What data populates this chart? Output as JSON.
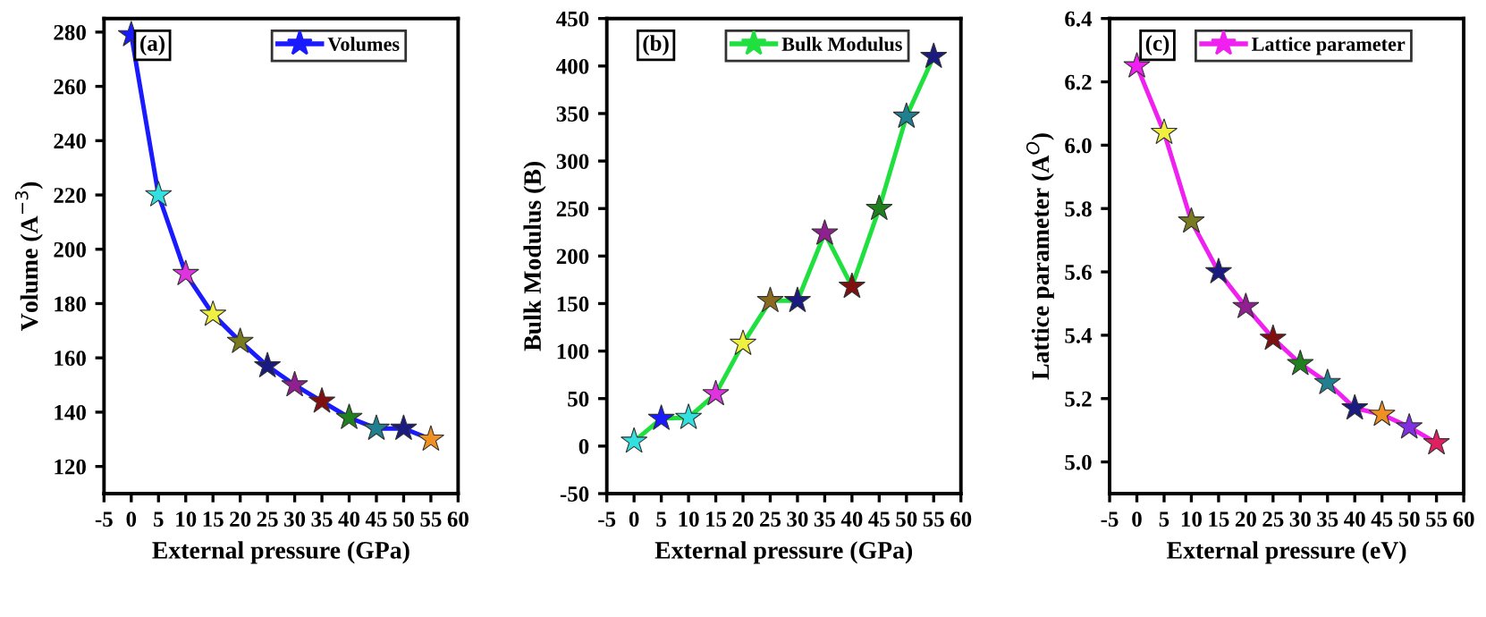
{
  "chart_data": [
    {
      "type": "line",
      "xlabel": "External pressure (GPa)",
      "ylabel": "Volume (A$^{−3}$)",
      "annotations": [
        "(a)"
      ],
      "x": [
        0,
        5,
        10,
        15,
        20,
        25,
        30,
        35,
        40,
        45,
        50,
        55
      ],
      "xlim": [
        -5,
        60
      ],
      "xticks": [
        -5,
        0,
        5,
        10,
        15,
        20,
        25,
        30,
        35,
        40,
        45,
        50,
        55,
        60
      ],
      "ylim": [
        110,
        285
      ],
      "yticks": [
        120,
        140,
        160,
        180,
        200,
        220,
        240,
        260,
        280
      ],
      "marker": "star",
      "legend": "top right",
      "grid": false,
      "series": [
        {
          "name": "Volumes",
          "color": "#1a1aff",
          "values": [
            279,
            220,
            191,
            176,
            166,
            157,
            150,
            144,
            138,
            134,
            134,
            130
          ],
          "colors": [
            "#1a1aff",
            "#33e0e0",
            "#e033e0",
            "#f0f040",
            "#7a7a20",
            "#1a1a80",
            "#902090",
            "#801010",
            "#208020",
            "#208090",
            "#1a1a80",
            "#f09020"
          ]
        }
      ]
    },
    {
      "type": "line",
      "xlabel": "External pressure (GPa)",
      "ylabel": "Bulk Modulus (B)",
      "annotations": [
        "(b)"
      ],
      "x": [
        0,
        5,
        10,
        15,
        20,
        25,
        30,
        35,
        40,
        45,
        50,
        55
      ],
      "xlim": [
        -5,
        60
      ],
      "xticks": [
        -5,
        0,
        5,
        10,
        15,
        20,
        25,
        30,
        35,
        40,
        45,
        50,
        55,
        60
      ],
      "ylim": [
        -50,
        450
      ],
      "yticks": [
        -50,
        0,
        50,
        100,
        150,
        200,
        250,
        300,
        350,
        400,
        450
      ],
      "marker": "star",
      "legend": "top right",
      "grid": false,
      "series": [
        {
          "name": "Bulk Modulus",
          "color": "#20e040",
          "values": [
            5,
            29,
            30,
            55,
            108,
            153,
            153,
            224,
            168,
            250,
            347,
            410
          ],
          "colors": [
            "#33e0e0",
            "#1a1aff",
            "#33e0e0",
            "#e033e0",
            "#f0f040",
            "#8a6a20",
            "#1a1a80",
            "#902090",
            "#801010",
            "#208020",
            "#208090",
            "#1a1a80"
          ]
        }
      ]
    },
    {
      "type": "line",
      "xlabel": "External pressure (eV)",
      "ylabel": "Lattice parameter (A$^{O}$)",
      "annotations": [
        "(c)"
      ],
      "x": [
        0,
        5,
        10,
        15,
        20,
        25,
        30,
        35,
        40,
        45,
        50,
        55
      ],
      "xlim": [
        -5,
        60
      ],
      "xticks": [
        -5,
        0,
        5,
        10,
        15,
        20,
        25,
        30,
        35,
        40,
        45,
        50,
        55,
        60
      ],
      "ylim": [
        4.9,
        6.4
      ],
      "yticks": [
        {
          "value": 5.0,
          "label": "5.0"
        },
        5.2,
        5.4,
        5.6,
        5.8,
        {
          "value": 6.0,
          "label": "6.0"
        },
        6.2,
        6.4
      ],
      "marker": "star",
      "legend": "top right",
      "grid": false,
      "series": [
        {
          "name": "Lattice parameter",
          "color": "#f020f0",
          "values": [
            6.25,
            6.04,
            5.76,
            5.6,
            5.49,
            5.39,
            5.31,
            5.25,
            5.17,
            5.15,
            5.11,
            5.06
          ],
          "colors": [
            "#f020f0",
            "#f0f040",
            "#7a7a20",
            "#1a1a80",
            "#902090",
            "#801010",
            "#208020",
            "#208090",
            "#1a1a80",
            "#f09020",
            "#8030e0",
            "#e02060"
          ]
        }
      ]
    }
  ]
}
